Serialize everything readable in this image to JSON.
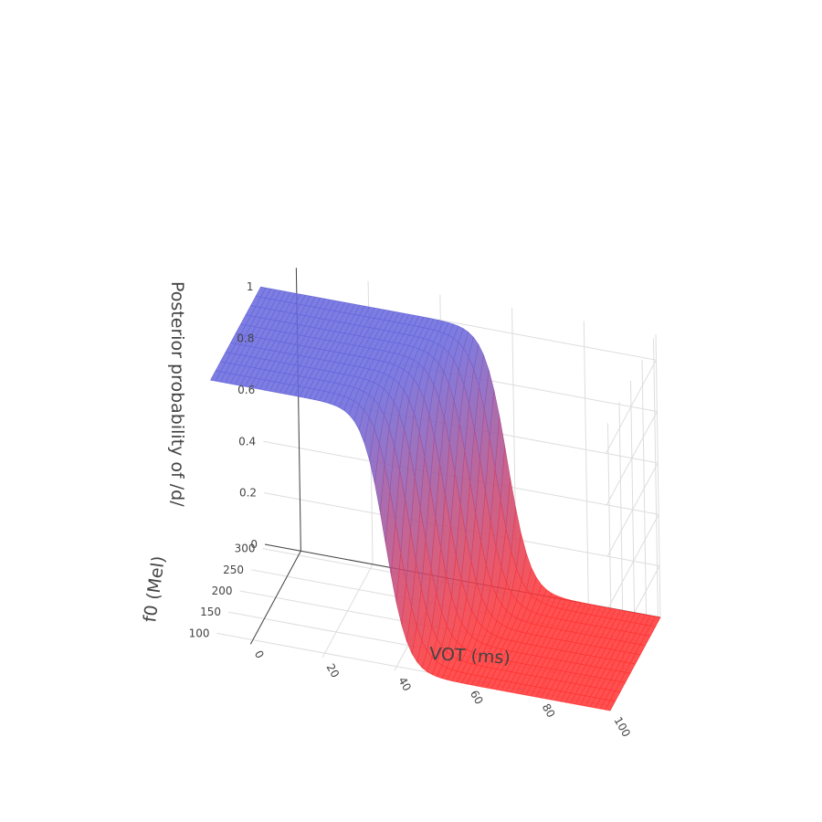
{
  "chart_data": {
    "type": "surface",
    "x_axis": {
      "title": "VOT (ms)",
      "ticks": [
        0,
        20,
        40,
        60,
        80,
        100
      ],
      "range": [
        -10,
        100
      ]
    },
    "y_axis": {
      "title": "f0 (Mel)",
      "ticks": [
        100,
        150,
        200,
        250,
        300
      ],
      "range": [
        90,
        310
      ]
    },
    "z_axis": {
      "title": "Posterior probability of /d/",
      "ticks": [
        0,
        0.2,
        0.4,
        0.6,
        0.8,
        1
      ],
      "range": [
        0,
        1.1
      ]
    },
    "surface": {
      "function": "logistic",
      "boundary_vot_at_f0_min": 38,
      "boundary_vot_at_f0_max": 58,
      "steepness": 0.35,
      "max_probability": 1.0
    },
    "colorscale": {
      "low": "#ff3333",
      "high": "#6666dd"
    },
    "opacity": 0.85
  }
}
